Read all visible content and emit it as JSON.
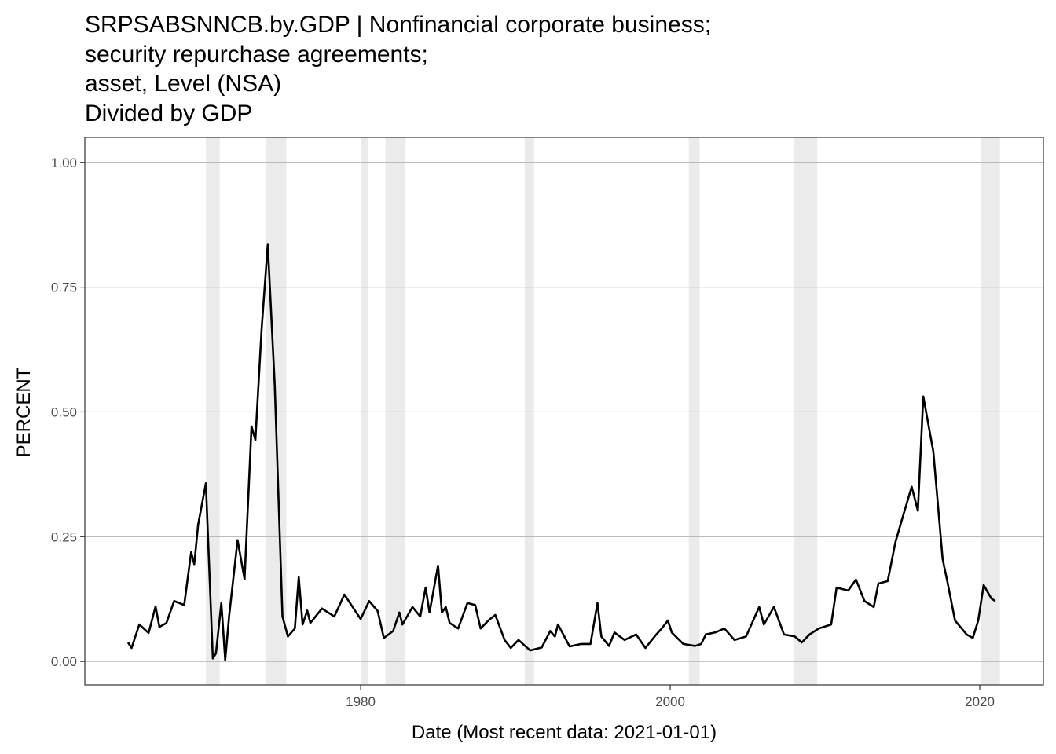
{
  "chart_data": {
    "type": "line",
    "title": [
      "SRPSABSNNCB.by.GDP | Nonfinancial corporate business;",
      "security repurchase agreements;",
      "asset, Level (NSA)",
      "Divided by GDP"
    ],
    "x_label": "Date (Most recent data: 2021-01-01)",
    "y_label": "PERCENT",
    "x": [
      1964.97,
      1965.2,
      1965.7,
      1966.3,
      1966.75,
      1967.0,
      1967.45,
      1967.95,
      1968.6,
      1969.05,
      1969.25,
      1969.5,
      1970.0,
      1970.45,
      1970.65,
      1971.0,
      1971.25,
      1971.5,
      1972.05,
      1972.5,
      1972.95,
      1973.2,
      1973.6,
      1974.0,
      1974.45,
      1974.95,
      1975.3,
      1975.75,
      1976.0,
      1976.25,
      1976.55,
      1976.75,
      1977.5,
      1978.3,
      1978.95,
      1979.55,
      1980.0,
      1980.55,
      1981.1,
      1981.5,
      1982.1,
      1982.5,
      1982.7,
      1983.35,
      1983.85,
      1984.2,
      1984.45,
      1985.0,
      1985.25,
      1985.5,
      1985.75,
      1986.3,
      1986.9,
      1987.4,
      1987.75,
      1988.25,
      1988.7,
      1989.3,
      1989.7,
      1990.2,
      1990.95,
      1991.7,
      1992.25,
      1992.55,
      1992.75,
      1993.5,
      1994.25,
      1994.85,
      1995.3,
      1995.55,
      1996.05,
      1996.4,
      1997.05,
      1997.8,
      1998.4,
      1999.1,
      1999.45,
      1999.85,
      2000.1,
      2000.85,
      2001.6,
      2002.0,
      2002.3,
      2002.9,
      2003.5,
      2004.15,
      2004.9,
      2005.75,
      2006.05,
      2006.7,
      2007.35,
      2008.05,
      2008.5,
      2009.0,
      2009.6,
      2010.4,
      2010.75,
      2011.5,
      2012.0,
      2012.55,
      2013.15,
      2013.45,
      2014.05,
      2014.55,
      2014.95,
      2015.6,
      2016.0,
      2016.35,
      2017.0,
      2017.6,
      2017.9,
      2018.4,
      2019.15,
      2019.55,
      2019.9,
      2020.25,
      2020.75,
      2021.0
    ],
    "series": [
      {
        "color": "#000000",
        "values": [
          0.038,
          0.027,
          0.074,
          0.057,
          0.11,
          0.069,
          0.077,
          0.121,
          0.113,
          0.219,
          0.195,
          0.274,
          0.357,
          0.006,
          0.016,
          0.117,
          0.003,
          0.09,
          0.243,
          0.165,
          0.471,
          0.444,
          0.665,
          0.835,
          0.554,
          0.09,
          0.05,
          0.066,
          0.169,
          0.074,
          0.102,
          0.077,
          0.106,
          0.09,
          0.134,
          0.106,
          0.085,
          0.121,
          0.101,
          0.047,
          0.061,
          0.098,
          0.074,
          0.109,
          0.09,
          0.148,
          0.098,
          0.192,
          0.098,
          0.109,
          0.077,
          0.066,
          0.117,
          0.113,
          0.066,
          0.082,
          0.093,
          0.043,
          0.027,
          0.043,
          0.022,
          0.028,
          0.061,
          0.05,
          0.074,
          0.03,
          0.035,
          0.035,
          0.117,
          0.05,
          0.031,
          0.058,
          0.043,
          0.054,
          0.027,
          0.054,
          0.066,
          0.082,
          0.058,
          0.035,
          0.031,
          0.035,
          0.054,
          0.058,
          0.066,
          0.043,
          0.05,
          0.109,
          0.074,
          0.109,
          0.054,
          0.05,
          0.038,
          0.054,
          0.066,
          0.074,
          0.148,
          0.142,
          0.164,
          0.121,
          0.109,
          0.156,
          0.161,
          0.239,
          0.282,
          0.35,
          0.302,
          0.531,
          0.42,
          0.205,
          0.161,
          0.082,
          0.054,
          0.047,
          0.082,
          0.153,
          0.126,
          0.121
        ]
      }
    ],
    "shaded_periods": [
      [
        1970.0,
        1970.9
      ],
      [
        1973.9,
        1975.2
      ],
      [
        1980.0,
        1980.5
      ],
      [
        1981.6,
        1982.9
      ],
      [
        1990.6,
        1991.2
      ],
      [
        2001.2,
        2001.9
      ],
      [
        2008.0,
        2009.5
      ],
      [
        2020.1,
        2021.3
      ]
    ],
    "shade_color": "#ebebeb",
    "xlim": [
      1962.18,
      2024.11
    ],
    "ylim": [
      -0.047,
      1.05
    ],
    "xticks": [
      1980,
      2000,
      2020
    ],
    "yticks": [
      {
        "value": 0,
        "label": "0.00"
      },
      {
        "value": 0.25,
        "label": "0.25"
      },
      {
        "value": 0.5,
        "label": "0.50"
      },
      {
        "value": 0.75,
        "label": "0.75"
      },
      {
        "value": 1,
        "label": "1.00"
      }
    ],
    "grid": true
  }
}
